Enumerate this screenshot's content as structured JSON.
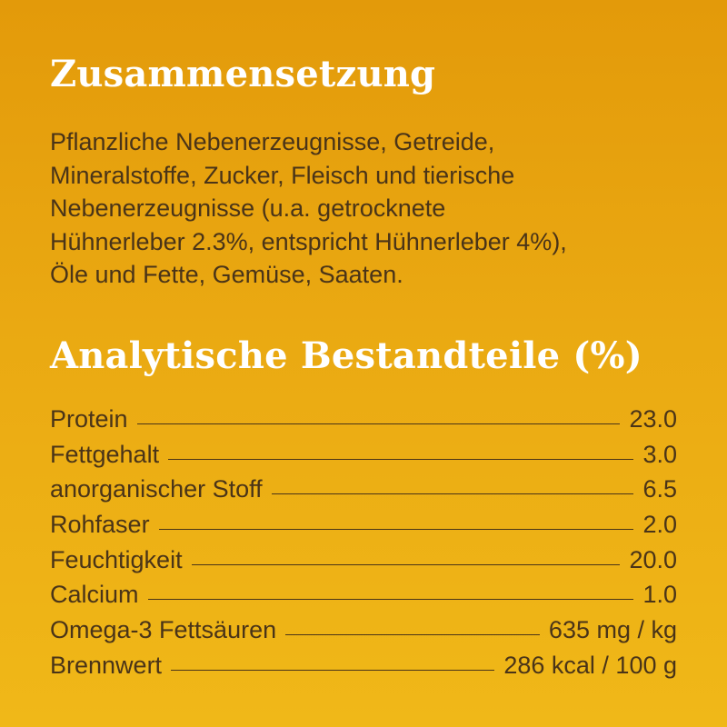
{
  "composition": {
    "title": "Zusammensetzung",
    "lines": [
      "Pflanzliche Nebenerzeugnisse, Getreide,",
      "Mineralstoffe, Zucker, Fleisch und tierische",
      "Nebenerzeugnisse (u.a. getrocknete",
      "Hühnerleber 2.3%, entspricht Hühnerleber 4%),",
      "Öle und Fette, Gemüse, Saaten."
    ]
  },
  "analysis": {
    "title": "Analytische Bestandteile (%)",
    "rows": [
      {
        "label": "Protein",
        "value": "23.0"
      },
      {
        "label": "Fettgehalt",
        "value": "3.0"
      },
      {
        "label": "anorganischer Stoff",
        "value": "6.5"
      },
      {
        "label": "Rohfaser",
        "value": "2.0"
      },
      {
        "label": "Feuchtigkeit",
        "value": "20.0"
      },
      {
        "label": "Calcium",
        "value": "1.0"
      },
      {
        "label": "Omega-3 Fettsäuren",
        "value": "635 mg / kg"
      },
      {
        "label": "Brennwert",
        "value": "286 kcal / 100 g"
      }
    ]
  },
  "colors": {
    "background_top": "#e39a0a",
    "background_bottom": "#f0b818",
    "heading": "#ffffff",
    "text": "#4a3418"
  }
}
